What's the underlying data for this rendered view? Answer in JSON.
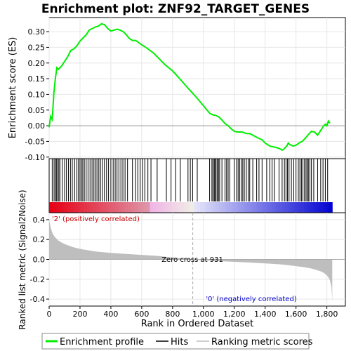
{
  "chart_data": [
    {
      "panel": "enrichment-profile",
      "type": "line",
      "title": "Enrichment plot: ZNF92_TARGET_GENES",
      "ylabel": "Enrichment score (ES)",
      "ylim": [
        -0.105,
        0.345
      ],
      "y_ticks": [
        -0.1,
        -0.05,
        0.0,
        0.05,
        0.1,
        0.15,
        0.2,
        0.25,
        0.3
      ],
      "y_tick_labels": [
        "-0.10",
        "-0.05",
        "0.00",
        "0.05",
        "0.10",
        "0.15",
        "0.20",
        "0.25",
        "0.30"
      ],
      "grid": true,
      "series": [
        {
          "name": "Enrichment profile",
          "color": "#00ee00",
          "x": [
            0,
            10,
            20,
            30,
            40,
            50,
            60,
            70,
            80,
            100,
            120,
            140,
            160,
            180,
            200,
            220,
            240,
            260,
            280,
            300,
            320,
            340,
            360,
            380,
            400,
            420,
            440,
            460,
            480,
            500,
            520,
            540,
            560,
            580,
            600,
            620,
            640,
            660,
            680,
            700,
            750,
            800,
            850,
            900,
            950,
            1000,
            1040,
            1060,
            1080,
            1100,
            1120,
            1140,
            1160,
            1180,
            1200,
            1220,
            1250,
            1280,
            1300,
            1320,
            1350,
            1380,
            1400,
            1430,
            1460,
            1490,
            1510,
            1520,
            1540,
            1550,
            1560,
            1580,
            1600,
            1620,
            1640,
            1660,
            1680,
            1700,
            1720,
            1740,
            1760,
            1780,
            1790,
            1800,
            1810,
            1820
          ],
          "y": [
            -0.005,
            0.03,
            0.02,
            0.1,
            0.15,
            0.185,
            0.18,
            0.185,
            0.19,
            0.205,
            0.22,
            0.24,
            0.245,
            0.255,
            0.27,
            0.28,
            0.29,
            0.305,
            0.31,
            0.315,
            0.318,
            0.325,
            0.322,
            0.31,
            0.302,
            0.305,
            0.308,
            0.305,
            0.3,
            0.29,
            0.278,
            0.272,
            0.272,
            0.265,
            0.258,
            0.252,
            0.245,
            0.238,
            0.23,
            0.22,
            0.195,
            0.175,
            0.148,
            0.12,
            0.093,
            0.064,
            0.04,
            0.035,
            0.033,
            0.028,
            0.018,
            0.007,
            0.0,
            -0.01,
            -0.018,
            -0.02,
            -0.02,
            -0.025,
            -0.025,
            -0.03,
            -0.038,
            -0.045,
            -0.055,
            -0.065,
            -0.068,
            -0.072,
            -0.078,
            -0.075,
            -0.065,
            -0.055,
            -0.06,
            -0.065,
            -0.062,
            -0.055,
            -0.05,
            -0.04,
            -0.028,
            -0.018,
            -0.02,
            -0.03,
            -0.015,
            0.0,
            0.005,
            0.0,
            0.015,
            0.008
          ]
        }
      ]
    },
    {
      "panel": "hits",
      "type": "scatter",
      "hits_label": "Hits",
      "hit_ranks": [
        20,
        32,
        40,
        47,
        55,
        63,
        70,
        85,
        100,
        112,
        125,
        138,
        150,
        165,
        180,
        190,
        200,
        210,
        218,
        228,
        240,
        252,
        265,
        278,
        290,
        300,
        310,
        322,
        333,
        345,
        358,
        372,
        385,
        400,
        415,
        428,
        440,
        452,
        465,
        478,
        492,
        508,
        540,
        560,
        575,
        590,
        605,
        620,
        640,
        660,
        700,
        760,
        790,
        820,
        850,
        900,
        915,
        930,
        960,
        1040,
        1055,
        1062,
        1070,
        1075,
        1082,
        1090,
        1098,
        1105,
        1120,
        1140,
        1150,
        1160,
        1170,
        1200,
        1215,
        1225,
        1235,
        1245,
        1255,
        1265,
        1278,
        1290,
        1300,
        1320,
        1345,
        1360,
        1380,
        1410,
        1430,
        1445,
        1460,
        1490,
        1510,
        1525,
        1535,
        1545,
        1555,
        1570,
        1585,
        1600,
        1615,
        1625,
        1635,
        1645,
        1655,
        1665,
        1672,
        1680,
        1690,
        1700,
        1715,
        1740,
        1760,
        1775,
        1790,
        1805
      ]
    },
    {
      "panel": "ranking-metric",
      "type": "area",
      "xlabel": "Rank in Ordered Dataset",
      "ylabel": "Ranked list metric (Signal2Noise)",
      "xlim": [
        0,
        1920
      ],
      "ylim": [
        -0.47,
        0.47
      ],
      "x_ticks": [
        0,
        200,
        400,
        600,
        800,
        1000,
        1200,
        1400,
        1600,
        1800
      ],
      "x_tick_labels": [
        "0",
        "200",
        "400",
        "600",
        "800",
        "1,000",
        "1,200",
        "1,400",
        "1,600",
        "1,800"
      ],
      "y_ticks": [
        -0.4,
        -0.2,
        0.0,
        0.2,
        0.4
      ],
      "y_tick_labels": [
        "-0.4",
        "-0.2",
        "0.0",
        "0.2",
        "0.4"
      ],
      "grid": true,
      "fill_color": "#bebebe",
      "x": [
        0,
        5,
        10,
        20,
        30,
        40,
        60,
        80,
        100,
        150,
        200,
        300,
        400,
        500,
        600,
        700,
        800,
        900,
        931,
        1000,
        1100,
        1200,
        1300,
        1400,
        1500,
        1550,
        1600,
        1650,
        1700,
        1730,
        1760,
        1780,
        1800,
        1810,
        1820,
        1830,
        1835
      ],
      "values": [
        0.4,
        0.36,
        0.32,
        0.27,
        0.24,
        0.22,
        0.19,
        0.17,
        0.155,
        0.125,
        0.105,
        0.08,
        0.065,
        0.055,
        0.045,
        0.035,
        0.02,
        0.008,
        0.0,
        -0.01,
        -0.018,
        -0.025,
        -0.032,
        -0.04,
        -0.05,
        -0.058,
        -0.068,
        -0.078,
        -0.092,
        -0.105,
        -0.12,
        -0.135,
        -0.16,
        -0.18,
        -0.21,
        -0.28,
        -0.42
      ],
      "zero_cross_label": "Zero cross at 931",
      "zero_cross_rank": 931,
      "positive_label": "'2' (positively correlated)",
      "negative_label": "'0' (negatively correlated)",
      "positive_color": "#cc0000",
      "negative_color": "#0000cc",
      "zero_line_color": "#aaaaaa"
    }
  ],
  "legend": {
    "items": [
      {
        "label": "Enrichment profile",
        "color": "#00ee00"
      },
      {
        "label": "Hits",
        "color": "#000000"
      },
      {
        "label": "Ranking metric scores",
        "color": "#bebebe"
      }
    ]
  }
}
